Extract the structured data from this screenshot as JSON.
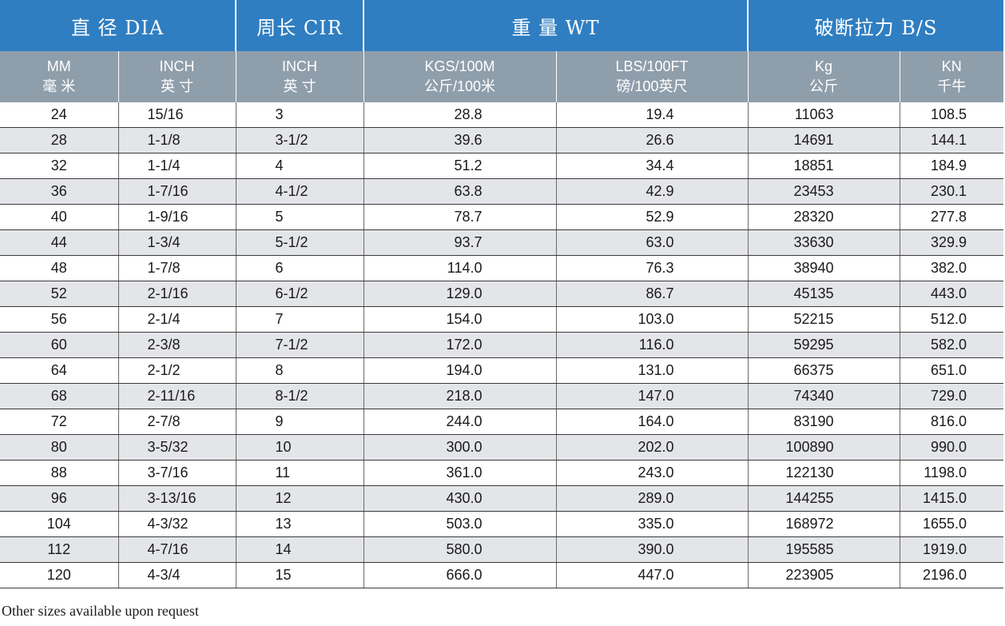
{
  "header_groups": [
    {
      "label": "直 径 DIA"
    },
    {
      "label": "周长 CIR"
    },
    {
      "label": "重 量 WT"
    },
    {
      "label": "破断拉力 B/S"
    }
  ],
  "sub_headers": [
    {
      "en": "MM",
      "zh": "毫 米"
    },
    {
      "en": "INCH",
      "zh": "英 寸"
    },
    {
      "en": "INCH",
      "zh": "英 寸"
    },
    {
      "en": "KGS/100M",
      "zh": "公斤/100米"
    },
    {
      "en": "LBS/100FT",
      "zh": "磅/100英尺"
    },
    {
      "en": "Kg",
      "zh": "公斤"
    },
    {
      "en": "KN",
      "zh": "千牛"
    }
  ],
  "rows": [
    [
      "24",
      "15/16",
      "3",
      "28.8",
      "19.4",
      "11063",
      "108.5"
    ],
    [
      "28",
      "1-1/8",
      "3-1/2",
      "39.6",
      "26.6",
      "14691",
      "144.1"
    ],
    [
      "32",
      "1-1/4",
      "4",
      "51.2",
      "34.4",
      "18851",
      "184.9"
    ],
    [
      "36",
      "1-7/16",
      "4-1/2",
      "63.8",
      "42.9",
      "23453",
      "230.1"
    ],
    [
      "40",
      "1-9/16",
      "5",
      "78.7",
      "52.9",
      "28320",
      "277.8"
    ],
    [
      "44",
      "1-3/4",
      "5-1/2",
      "93.7",
      "63.0",
      "33630",
      "329.9"
    ],
    [
      "48",
      "1-7/8",
      "6",
      "114.0",
      "76.3",
      "38940",
      "382.0"
    ],
    [
      "52",
      "2-1/16",
      "6-1/2",
      "129.0",
      "86.7",
      "45135",
      "443.0"
    ],
    [
      "56",
      "2-1/4",
      "7",
      "154.0",
      "103.0",
      "52215",
      "512.0"
    ],
    [
      "60",
      "2-3/8",
      "7-1/2",
      "172.0",
      "116.0",
      "59295",
      "582.0"
    ],
    [
      "64",
      "2-1/2",
      "8",
      "194.0",
      "131.0",
      "66375",
      "651.0"
    ],
    [
      "68",
      "2-11/16",
      "8-1/2",
      "218.0",
      "147.0",
      "74340",
      "729.0"
    ],
    [
      "72",
      "2-7/8",
      "9",
      "244.0",
      "164.0",
      "83190",
      "816.0"
    ],
    [
      "80",
      "3-5/32",
      "10",
      "300.0",
      "202.0",
      "100890",
      "990.0"
    ],
    [
      "88",
      "3-7/16",
      "11",
      "361.0",
      "243.0",
      "122130",
      "1198.0"
    ],
    [
      "96",
      "3-13/16",
      "12",
      "430.0",
      "289.0",
      "144255",
      "1415.0"
    ],
    [
      "104",
      "4-3/32",
      "13",
      "503.0",
      "335.0",
      "168972",
      "1655.0"
    ],
    [
      "112",
      "4-7/16",
      "14",
      "580.0",
      "390.0",
      "195585",
      "1919.0"
    ],
    [
      "120",
      "4-3/4",
      "15",
      "666.0",
      "447.0",
      "223905",
      "2196.0"
    ]
  ],
  "footnote": "Other sizes available upon request",
  "colors": {
    "header_blue": "#2f7ec1",
    "subheader_grey": "#8f9eab",
    "row_alt": "#e4e5e9",
    "rule": "#3a3a3a"
  }
}
